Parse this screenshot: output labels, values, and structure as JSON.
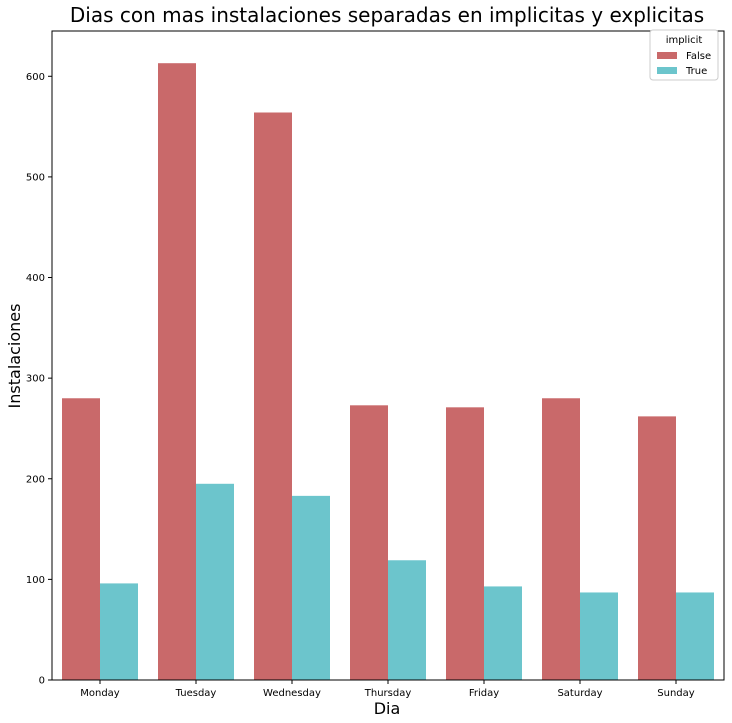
{
  "chart_data": {
    "type": "bar",
    "title": "Dias con mas instalaciones separadas en implicitas y explicitas",
    "xlabel": "Dia",
    "ylabel": "Instalaciones",
    "categories": [
      "Monday",
      "Tuesday",
      "Wednesday",
      "Thursday",
      "Friday",
      "Saturday",
      "Sunday"
    ],
    "series": [
      {
        "name": "False",
        "color": "#c9696a",
        "values": [
          280,
          613,
          564,
          273,
          271,
          280,
          262
        ]
      },
      {
        "name": "True",
        "color": "#6cc5cc",
        "values": [
          96,
          195,
          183,
          119,
          93,
          87,
          87
        ]
      }
    ],
    "ylim": [
      0,
      645
    ],
    "yticks": [
      0,
      100,
      200,
      300,
      400,
      500,
      600
    ],
    "legend": {
      "title": "implicit",
      "placement": "top-right"
    },
    "grid": false
  }
}
